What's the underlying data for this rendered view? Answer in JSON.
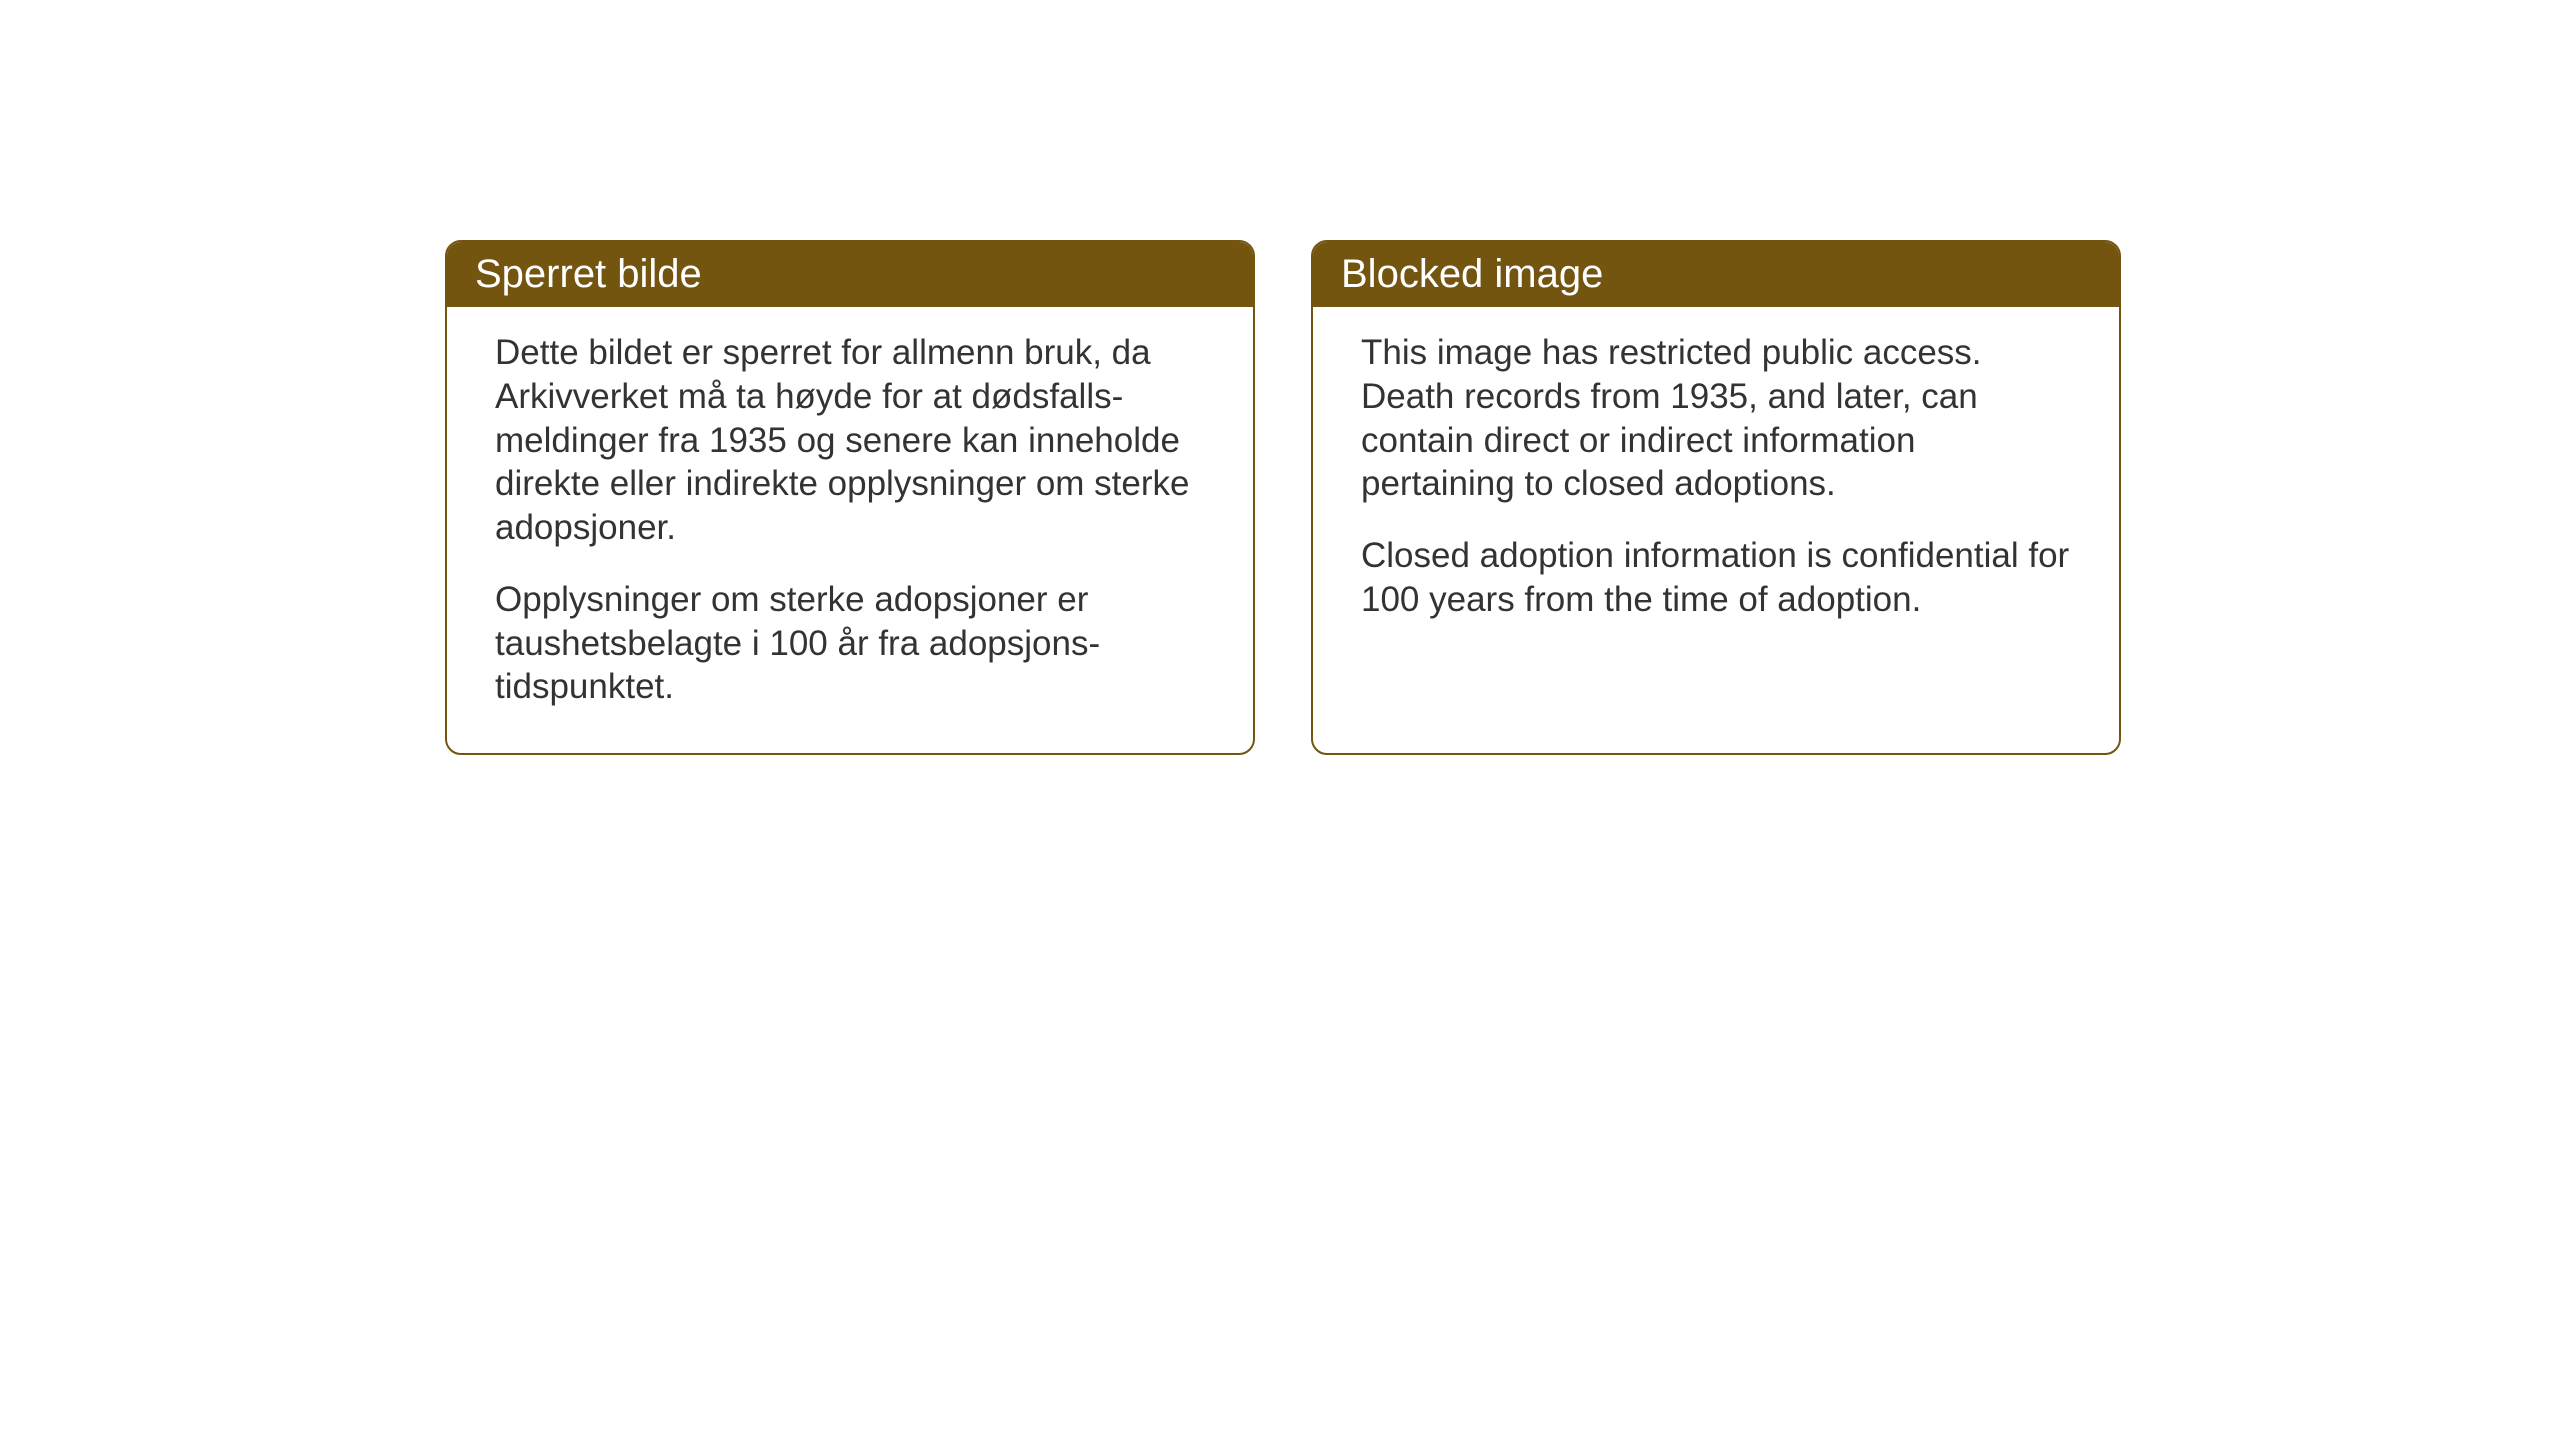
{
  "cards": {
    "norwegian": {
      "title": "Sperret bilde",
      "paragraph1": "Dette bildet er sperret for allmenn bruk, da Arkivverket må ta høyde for at dødsfalls-meldinger fra 1935 og senere kan inneholde direkte eller indirekte opplysninger om sterke adopsjoner.",
      "paragraph2": "Opplysninger om sterke adopsjoner er taushetsbelagte i 100 år fra adopsjons-tidspunktet."
    },
    "english": {
      "title": "Blocked image",
      "paragraph1": "This image has restricted public access. Death records from 1935, and later, can contain direct or indirect information pertaining to closed adoptions.",
      "paragraph2": "Closed adoption information is confidential for 100 years from the time of adoption."
    }
  },
  "styling": {
    "header_bg_color": "#735510",
    "header_text_color": "#ffffff",
    "border_color": "#735510",
    "body_bg_color": "#ffffff",
    "body_text_color": "#333333",
    "page_bg_color": "#ffffff",
    "border_radius": 16,
    "title_fontsize": 40,
    "body_fontsize": 35
  }
}
